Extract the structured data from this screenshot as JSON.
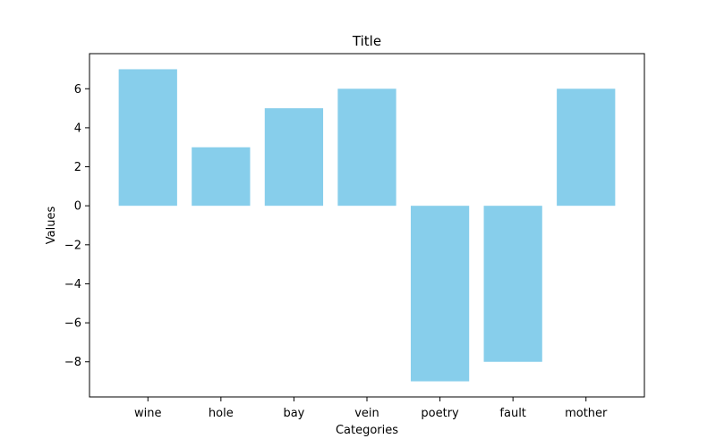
{
  "chart_data": {
    "type": "bar",
    "title": "Title",
    "xlabel": "Categories",
    "ylabel": "Values",
    "categories": [
      "wine",
      "hole",
      "bay",
      "vein",
      "poetry",
      "fault",
      "mother"
    ],
    "values": [
      7,
      3,
      5,
      6,
      -9,
      -8,
      6
    ],
    "ylim": [
      -9.8,
      7.8
    ],
    "yticks": [
      -8,
      -6,
      -4,
      -2,
      0,
      2,
      4,
      6
    ],
    "ytick_labels": [
      "−8",
      "−6",
      "−4",
      "−2",
      "0",
      "2",
      "4",
      "6"
    ],
    "grid": false,
    "legend": "none",
    "bar_color": "#87ceeb"
  }
}
